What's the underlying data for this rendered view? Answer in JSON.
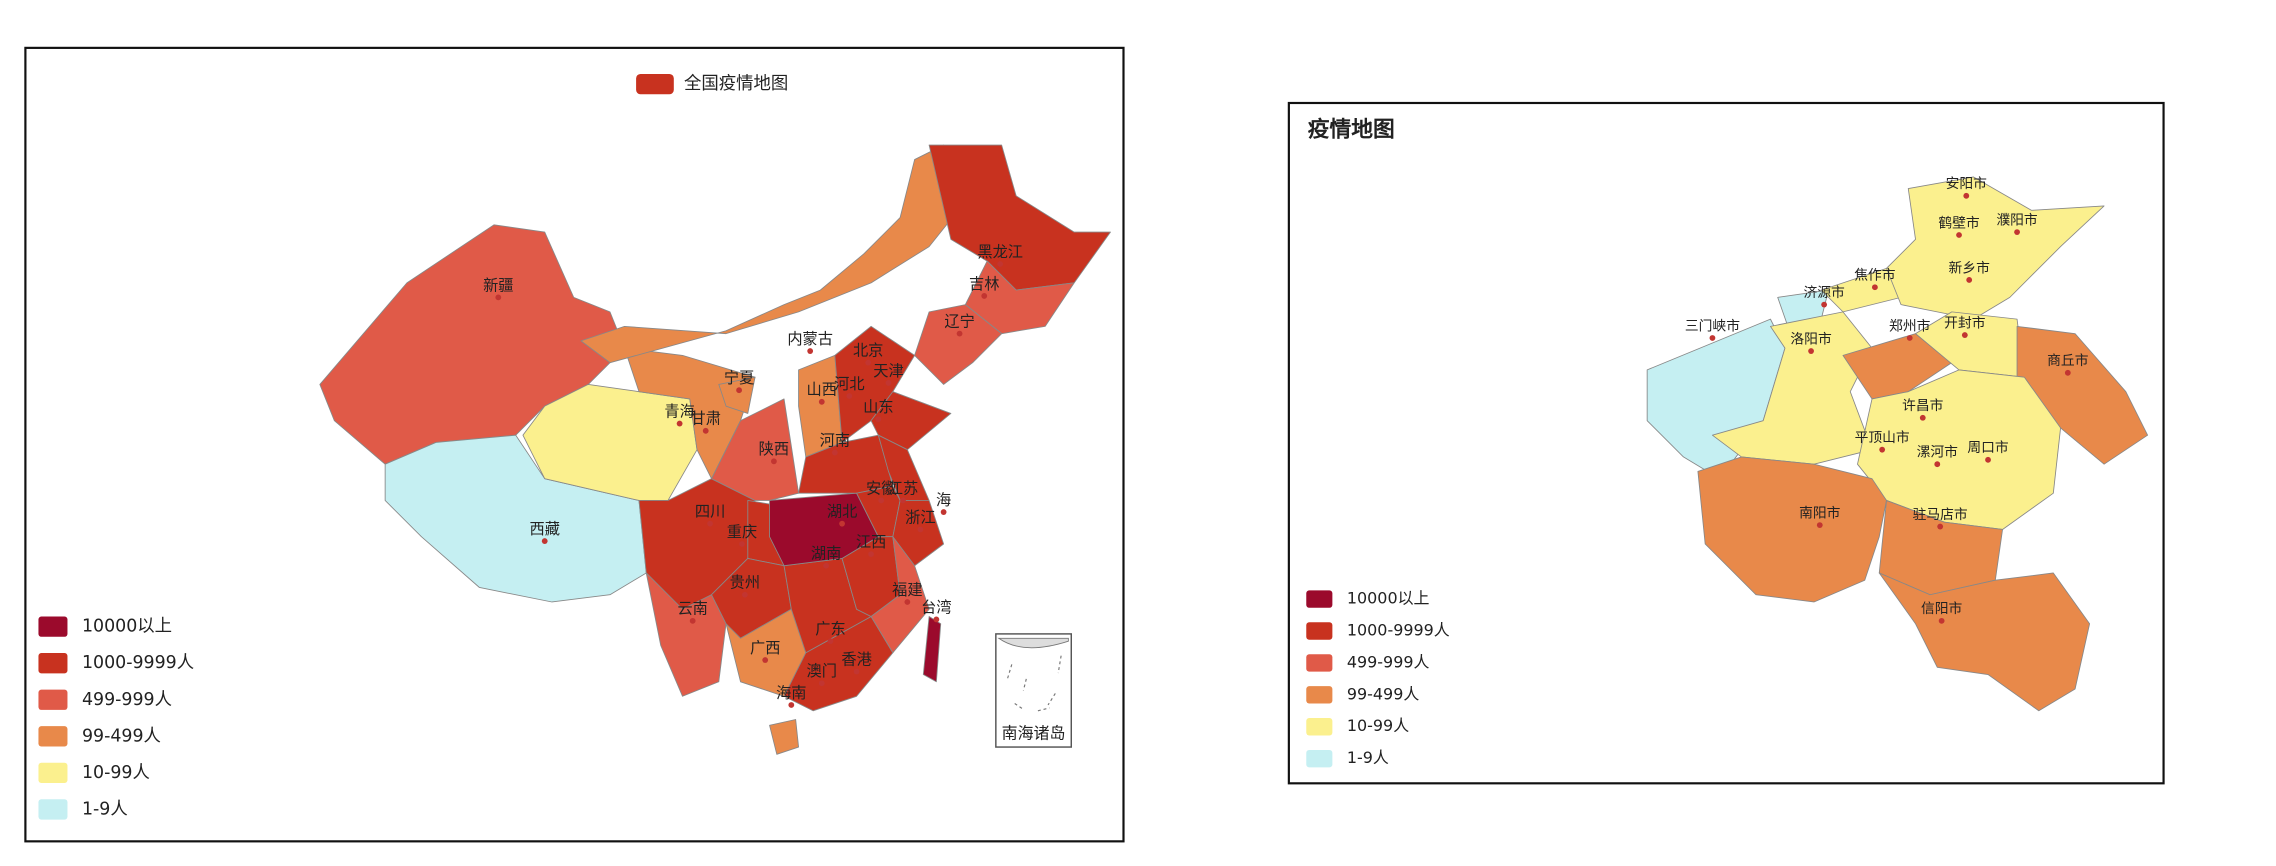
{
  "maps": [
    {
      "legend": "全国疫情地图",
      "pieces": [
        {
          "label": "10000以上",
          "color": "#9b0a2c"
        },
        {
          "label": "1000-9999人",
          "color": "#c8321f"
        },
        {
          "label": "499-999人",
          "color": "#e05a48"
        },
        {
          "label": "99-499人",
          "color": "#e8894a"
        },
        {
          "label": "10-99人",
          "color": "#fbf08e"
        },
        {
          "label": "1-9人",
          "color": "#c5eff2"
        }
      ],
      "regions": [
        "新疆",
        "西藏",
        "青海",
        "甘肃",
        "宁夏",
        "内蒙古",
        "黑龙江",
        "吉林",
        "辽宁",
        "北京",
        "天津",
        "河北",
        "山西",
        "山东",
        "河南",
        "陕西",
        "四川",
        "重庆",
        "湖北",
        "安徽",
        "江苏",
        "海",
        "浙江",
        "湖南",
        "江西",
        "贵州",
        "云南",
        "福建",
        "台湾",
        "广西",
        "广东",
        "澳门",
        "香港",
        "海南"
      ],
      "inset": "南海诸岛"
    },
    {
      "title": "疫情地图",
      "pieces": [
        {
          "label": "10000以上",
          "color": "#9b0a2c"
        },
        {
          "label": "1000-9999人",
          "color": "#c8321f"
        },
        {
          "label": "499-999人",
          "color": "#e05a48"
        },
        {
          "label": "99-499人",
          "color": "#e8894a"
        },
        {
          "label": "10-99人",
          "color": "#fbf08e"
        },
        {
          "label": "1-9人",
          "color": "#c5eff2"
        }
      ],
      "regions": [
        "安阳市",
        "鹤壁市",
        "濮阳市",
        "新乡市",
        "焦作市",
        "济源市",
        "三门峡市",
        "洛阳市",
        "郑州市",
        "开封市",
        "商丘市",
        "许昌市",
        "平顶山市",
        "漯河市",
        "周口市",
        "南阳市",
        "驻马店市",
        "信阳市"
      ]
    }
  ]
}
